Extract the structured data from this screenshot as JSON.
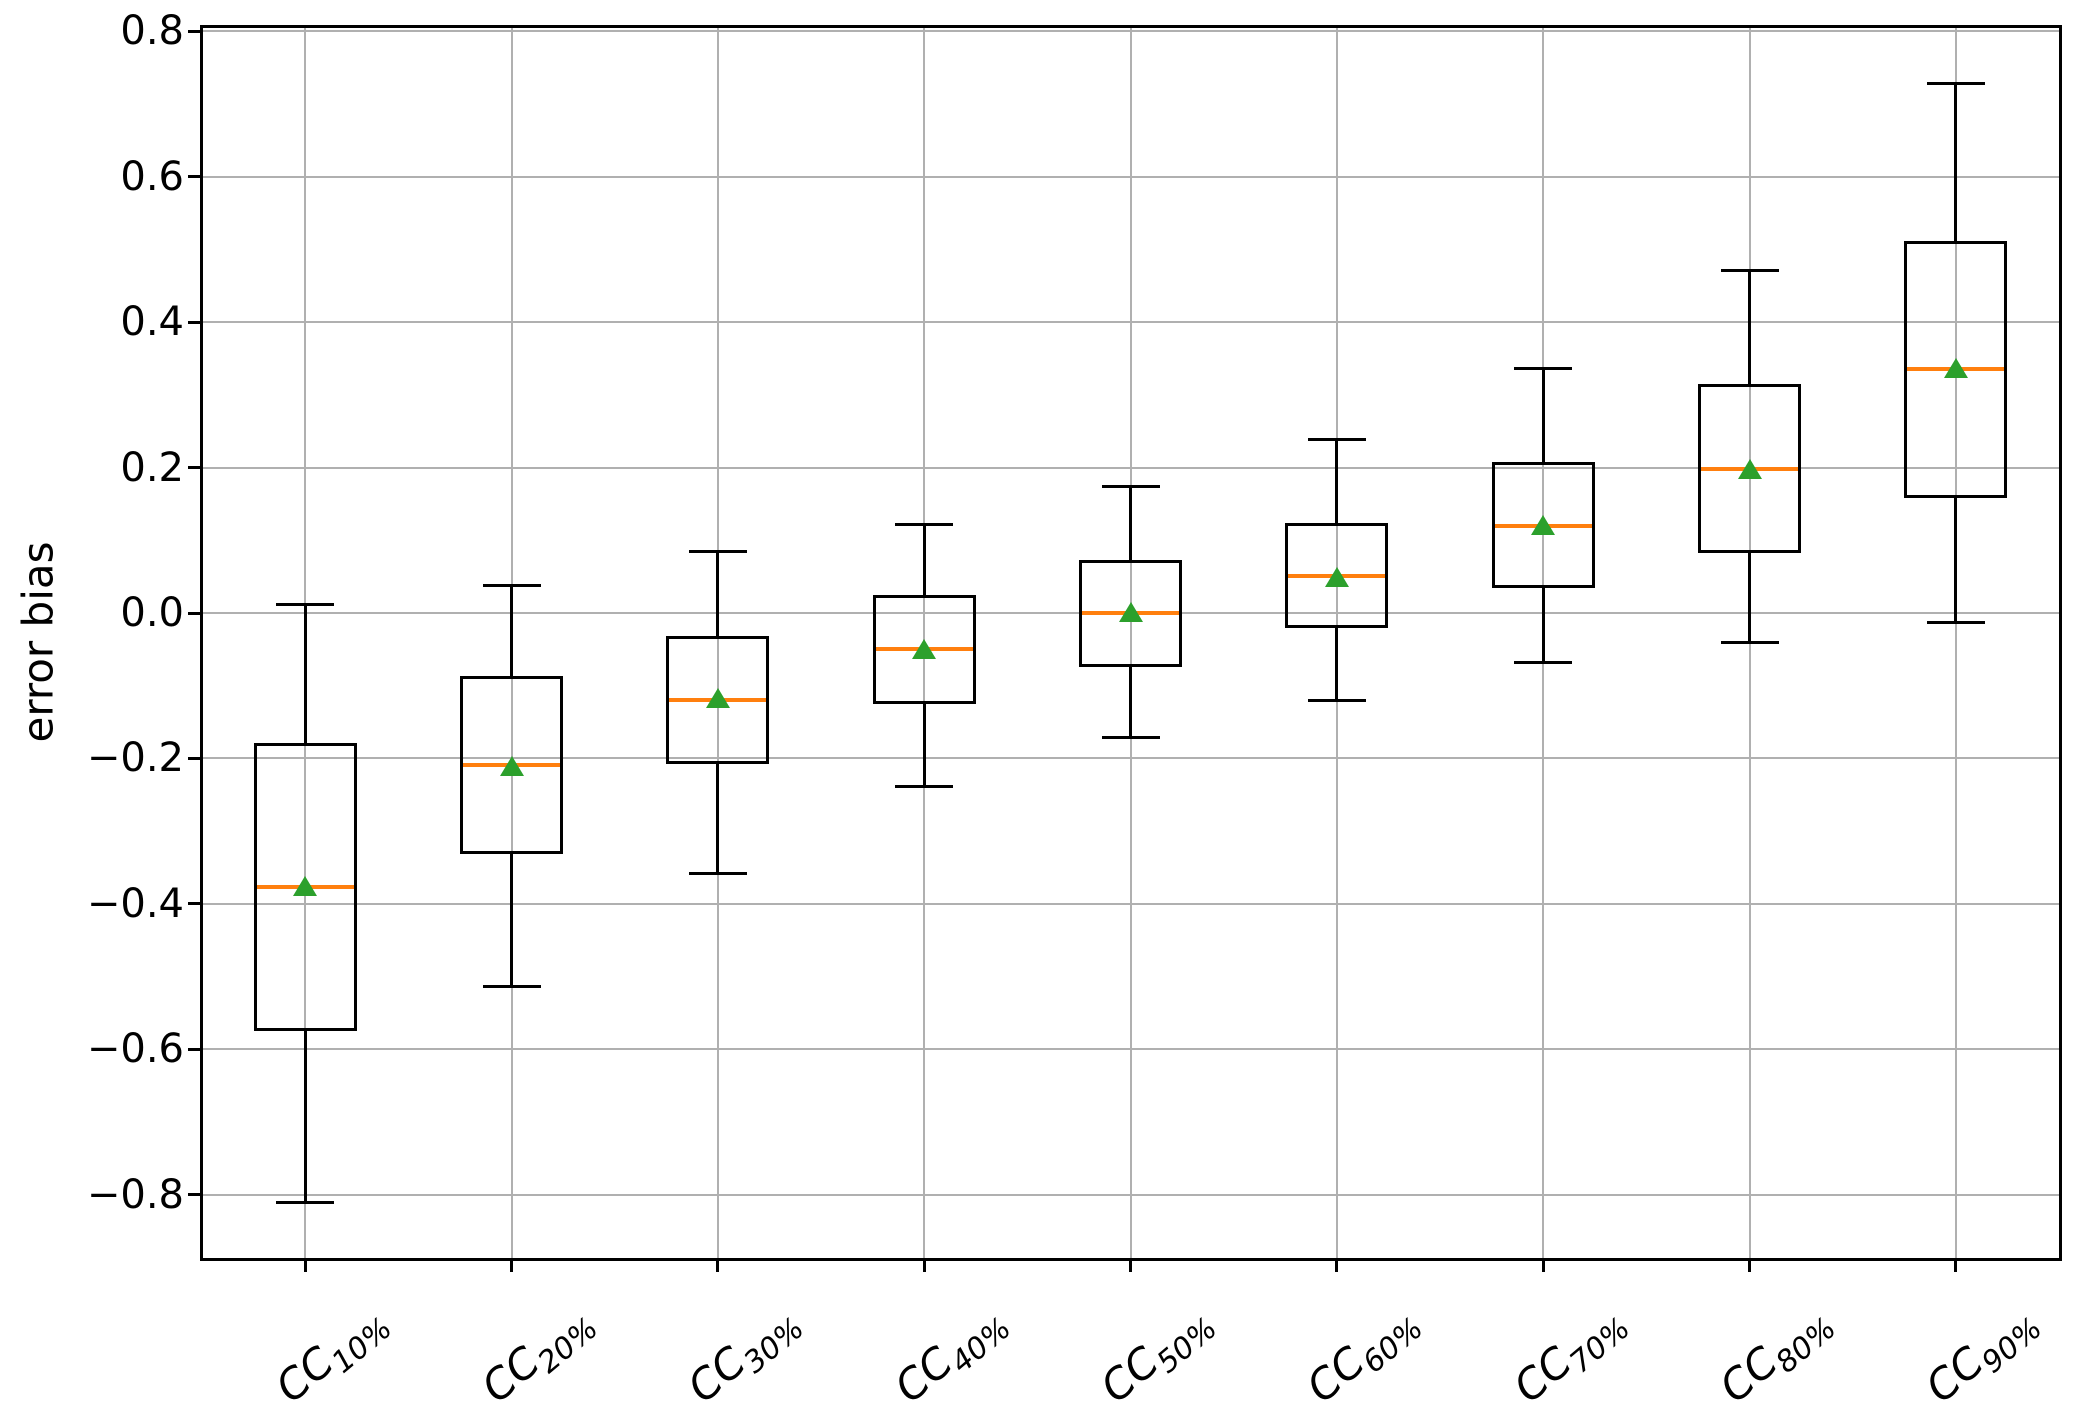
{
  "figure": {
    "background": "#ffffff"
  },
  "chart_data": {
    "type": "boxplot",
    "title": "",
    "xlabel": "",
    "ylabel": "error bias",
    "ylim": [
      -0.887,
      0.806
    ],
    "grid": "both",
    "legend": "none",
    "y_ticks": {
      "values": [
        0.8,
        0.6,
        0.4,
        0.2,
        0.0,
        -0.2,
        -0.4,
        -0.6,
        -0.8
      ],
      "labels": [
        "0.8",
        "0.6",
        "0.4",
        "0.2",
        "0.0",
        "−0.2",
        "−0.4",
        "−0.6",
        "−0.8"
      ]
    },
    "categories": [
      "CC10%",
      "CC20%",
      "CC30%",
      "CC40%",
      "CC50%",
      "CC60%",
      "CC70%",
      "CC80%",
      "CC90%"
    ],
    "category_labels": [
      {
        "prefix": "CC",
        "subscript": "10%"
      },
      {
        "prefix": "CC",
        "subscript": "20%"
      },
      {
        "prefix": "CC",
        "subscript": "30%"
      },
      {
        "prefix": "CC",
        "subscript": "40%"
      },
      {
        "prefix": "CC",
        "subscript": "50%"
      },
      {
        "prefix": "CC",
        "subscript": "60%"
      },
      {
        "prefix": "CC",
        "subscript": "70%"
      },
      {
        "prefix": "CC",
        "subscript": "80%"
      },
      {
        "prefix": "CC",
        "subscript": "90%"
      }
    ],
    "series": [
      {
        "name": "CC10%",
        "whisker_low": -0.81,
        "q1": -0.575,
        "median": -0.377,
        "mean": -0.376,
        "q3": -0.179,
        "whisker_high": 0.012
      },
      {
        "name": "CC20%",
        "whisker_low": -0.513,
        "q1": -0.332,
        "median": -0.209,
        "mean": -0.21,
        "q3": -0.087,
        "whisker_high": 0.038
      },
      {
        "name": "CC30%",
        "whisker_low": -0.358,
        "q1": -0.207,
        "median": -0.119,
        "mean": -0.117,
        "q3": -0.031,
        "whisker_high": 0.084
      },
      {
        "name": "CC40%",
        "whisker_low": -0.238,
        "q1": -0.125,
        "median": -0.05,
        "mean": -0.049,
        "q3": 0.025,
        "whisker_high": 0.122
      },
      {
        "name": "CC50%",
        "whisker_low": -0.171,
        "q1": -0.074,
        "median": 0.0,
        "mean": 0.001,
        "q3": 0.073,
        "whisker_high": 0.174
      },
      {
        "name": "CC60%",
        "whisker_low": -0.12,
        "q1": -0.021,
        "median": 0.051,
        "mean": 0.05,
        "q3": 0.124,
        "whisker_high": 0.239
      },
      {
        "name": "CC70%",
        "whisker_low": -0.068,
        "q1": 0.034,
        "median": 0.12,
        "mean": 0.121,
        "q3": 0.208,
        "whisker_high": 0.337
      },
      {
        "name": "CC80%",
        "whisker_low": -0.04,
        "q1": 0.083,
        "median": 0.198,
        "mean": 0.198,
        "q3": 0.315,
        "whisker_high": 0.471
      },
      {
        "name": "CC90%",
        "whisker_low": -0.013,
        "q1": 0.158,
        "median": 0.335,
        "mean": 0.337,
        "q3": 0.512,
        "whisker_high": 0.728
      }
    ],
    "colors": {
      "box_edge": "#000000",
      "median": "#ff7f0e",
      "mean_marker": "#2ca02c",
      "grid": "#b0b0b0",
      "background": "#ffffff"
    }
  }
}
